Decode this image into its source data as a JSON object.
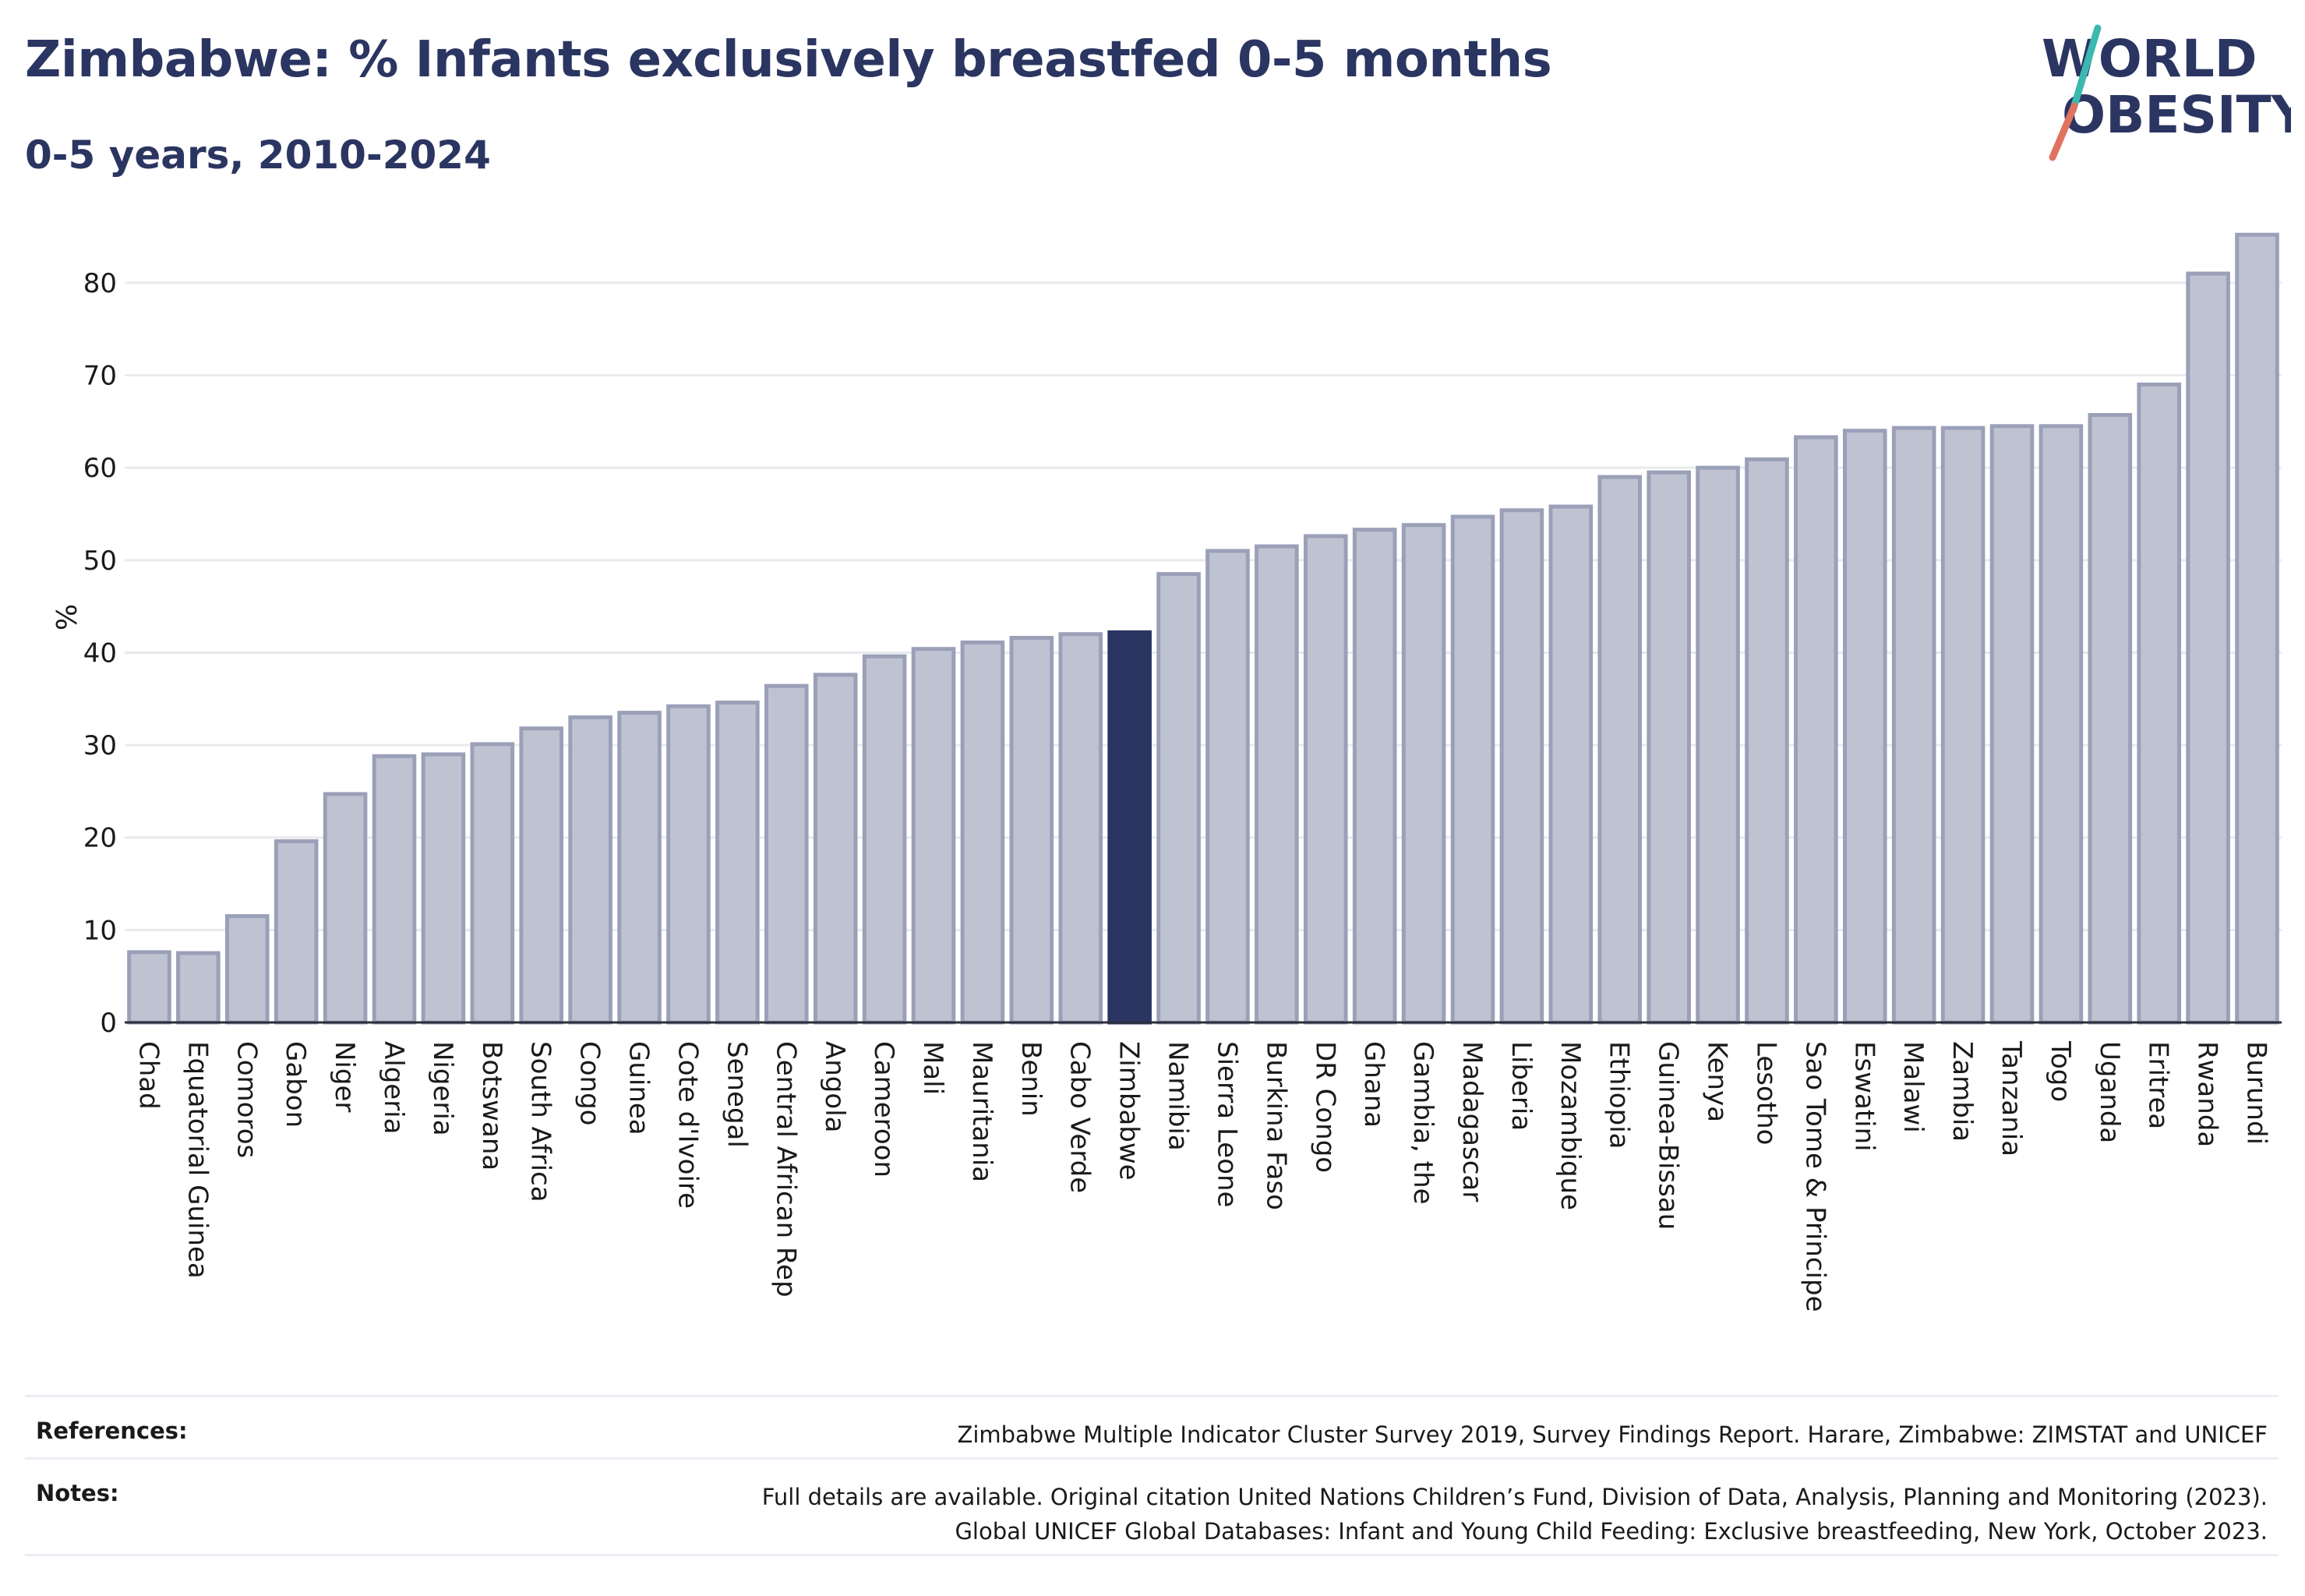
{
  "header": {
    "title": "Zimbabwe: % Infants exclusively breastfed 0-5 months",
    "subtitle": "0-5 years, 2010-2024"
  },
  "logo": {
    "line1": "WORLD",
    "line2": "OBESITY",
    "slash_top_color": "#3bb8b0",
    "slash_bottom_color": "#e0735f"
  },
  "colors": {
    "highlight": "#2b3561",
    "bar": "#bfc3d1",
    "bar_stroke": "#9aa0b8",
    "grid": "#e9eaee"
  },
  "chart_data": {
    "type": "bar",
    "ylabel": "%",
    "ylim": [
      0,
      88
    ],
    "yticks": [
      0,
      10,
      20,
      30,
      40,
      50,
      60,
      70,
      80
    ],
    "highlight": "Zimbabwe",
    "categories": [
      "Chad",
      "Equatorial Guinea",
      "Comoros",
      "Gabon",
      "Niger",
      "Algeria",
      "Nigeria",
      "Botswana",
      "South Africa",
      "Congo",
      "Guinea",
      "Cote d'Ivoire",
      "Senegal",
      "Central African Rep",
      "Angola",
      "Cameroon",
      "Mali",
      "Mauritania",
      "Benin",
      "Cabo Verde",
      "Zimbabwe",
      "Namibia",
      "Sierra Leone",
      "Burkina Faso",
      "DR Congo",
      "Ghana",
      "Gambia, the",
      "Madagascar",
      "Liberia",
      "Mozambique",
      "Ethiopia",
      "Guinea-Bissau",
      "Kenya",
      "Lesotho",
      "Sao Tome & Principe",
      "Eswatini",
      "Malawi",
      "Zambia",
      "Tanzania",
      "Togo",
      "Uganda",
      "Eritrea",
      "Rwanda",
      "Burundi"
    ],
    "values": [
      7.6,
      7.5,
      11.5,
      19.6,
      24.7,
      28.8,
      29.0,
      30.1,
      31.8,
      33.0,
      33.5,
      34.2,
      34.6,
      36.4,
      37.6,
      39.6,
      40.4,
      41.1,
      41.6,
      42.0,
      42.2,
      48.5,
      51.0,
      51.5,
      52.6,
      53.3,
      53.8,
      54.7,
      55.4,
      55.8,
      59.0,
      59.5,
      60.0,
      60.9,
      63.3,
      64.0,
      64.3,
      64.3,
      64.5,
      64.5,
      65.7,
      69.0,
      81.0,
      85.2
    ]
  },
  "footer": {
    "references_label": "References:",
    "references_text": "Zimbabwe Multiple Indicator Cluster Survey 2019, Survey Findings Report. Harare, Zimbabwe: ZIMSTAT and UNICEF",
    "notes_label": "Notes:",
    "notes_line1": "Full details are available. Original citation United Nations Children’s Fund, Division of Data, Analysis, Planning and Monitoring (2023).",
    "notes_line2": "Global UNICEF Global Databases: Infant and Young Child Feeding: Exclusive breastfeeding, New York, October 2023."
  }
}
